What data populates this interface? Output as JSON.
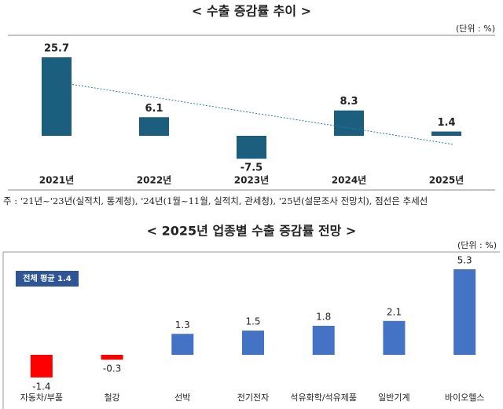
{
  "chart_data": [
    {
      "type": "bar",
      "title": "< 수출 증감률 추이 >",
      "unit": "(단위 : %)",
      "categories": [
        "2021년",
        "2022년",
        "2023년",
        "2024년",
        "2025년"
      ],
      "values": [
        25.7,
        6.1,
        -7.5,
        8.3,
        1.4
      ],
      "color": "#1b5e7e",
      "trendline": true,
      "note": "주 : '21년~'23년(실적치, 통계청), '24년(1월~11월, 실적치, 관세청), '25년(설문조사 전망치), 점선은 추세선"
    },
    {
      "type": "bar",
      "title": "< 2025년 업종별 수출 증감률 전망 >",
      "unit": "(단위 : %)",
      "annotation": "전체 평균 1.4",
      "categories": [
        "자동차/부품",
        "철강",
        "선박",
        "전기전자",
        "석유화학/석유제품",
        "일반기계",
        "바이오헬스"
      ],
      "values": [
        -1.4,
        -0.3,
        1.3,
        1.5,
        1.8,
        2.1,
        5.3
      ],
      "positive_color": "#4472c4",
      "negative_color": "#ff0000"
    }
  ]
}
